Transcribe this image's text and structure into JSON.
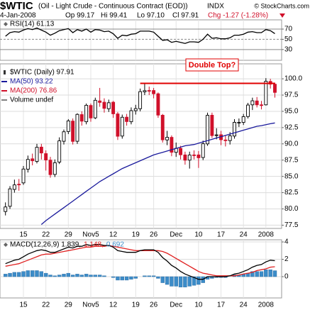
{
  "header": {
    "symbol": "$WTIC",
    "description": "(Oil - Light Crude - Continuous Contract (EOD))",
    "exchange": "INDX",
    "source": "© StockCharts.com",
    "date": "4-Jan-2008",
    "open": "Op 99.17",
    "high": "Hi 99.41",
    "low": "Lo 97.10",
    "close": "Cl 97.91",
    "change": "Chg -1.27 (-1.28%)"
  },
  "chart_data": [
    {
      "type": "line",
      "ylim": [
        9,
        88
      ],
      "yticks": [
        70,
        50,
        30
      ],
      "series": [
        {
          "name": "RSI(14) 61.13",
          "color": "#000000",
          "values": [
            56,
            63,
            65,
            64,
            68,
            71,
            69,
            72,
            68,
            64,
            58,
            62,
            67,
            69,
            71,
            63,
            69,
            66,
            70,
            64,
            69,
            68,
            65,
            66,
            61,
            52,
            58,
            57,
            60,
            61,
            66,
            66,
            66,
            64,
            56,
            48,
            49,
            44,
            46,
            44,
            42,
            45,
            45,
            44,
            50,
            60,
            52,
            53,
            51,
            51,
            53,
            58,
            58,
            60,
            64,
            65,
            63,
            63,
            69,
            67,
            61.13
          ]
        }
      ]
    },
    {
      "type": "candlestick",
      "ylim": [
        77,
        102.3
      ],
      "yticks": [
        {
          "value": 100,
          "label": "100.0"
        },
        97.5,
        {
          "value": 95,
          "label": "95.0"
        },
        92.5,
        {
          "value": 90,
          "label": "90.0"
        },
        87.5,
        {
          "value": 85,
          "label": "85.0"
        },
        82.5,
        {
          "value": 80,
          "label": "80.0"
        },
        77.5
      ],
      "categories": [
        null,
        null,
        null,
        null,
        "15",
        null,
        null,
        null,
        null,
        "22",
        null,
        null,
        null,
        null,
        "29",
        null,
        null,
        null,
        null,
        "Nov5",
        null,
        null,
        null,
        null,
        "12",
        null,
        null,
        null,
        null,
        "19",
        null,
        null,
        null,
        "26",
        null,
        null,
        null,
        null,
        "Dec",
        null,
        null,
        null,
        null,
        "10",
        null,
        null,
        null,
        null,
        "17",
        null,
        null,
        null,
        null,
        "24",
        null,
        null,
        null,
        null,
        "2008",
        null,
        null
      ],
      "up_color": "#000000",
      "down_color": "#d0102a",
      "candles": {
        "name": "$WTIC (Daily) 97.91",
        "open": [
          79.6,
          80.4,
          83.0,
          83.8,
          84.0,
          86.1,
          87.7,
          87.3,
          89.5,
          88.5,
          87.5,
          85.3,
          87.2,
          90.4,
          91.9,
          93.5,
          90.4,
          94.5,
          93.4,
          95.9,
          94.0,
          96.6,
          96.4,
          95.4,
          96.4,
          94.6,
          91.2,
          94.1,
          93.4,
          95.1,
          95.4,
          98.0,
          98.2,
          98.2,
          97.7,
          94.4,
          90.6,
          91.0,
          88.7,
          89.3,
          88.3,
          87.5,
          88.3,
          88.3,
          87.9,
          90.0,
          94.4,
          91.3,
          91.4,
          90.6,
          90.5,
          91.2,
          93.3,
          93.3,
          94.2,
          96.0,
          96.6,
          96.0,
          96.0,
          99.6,
          99.17
        ],
        "high": [
          81.0,
          83.5,
          84.5,
          84.6,
          86.6,
          88.2,
          88.5,
          90.0,
          90.0,
          89.0,
          88.0,
          87.6,
          91.0,
          92.2,
          93.8,
          93.9,
          94.7,
          95.0,
          96.2,
          96.2,
          97.1,
          98.6,
          97.0,
          96.8,
          96.6,
          94.9,
          94.5,
          94.6,
          95.6,
          96.0,
          98.5,
          99.3,
          98.8,
          98.6,
          97.9,
          94.6,
          92.0,
          91.3,
          90.2,
          89.7,
          88.8,
          88.8,
          89.0,
          88.9,
          90.5,
          94.8,
          94.8,
          92.4,
          92.0,
          91.3,
          91.8,
          93.8,
          93.9,
          94.6,
          96.3,
          97.1,
          97.2,
          96.6,
          100.1,
          100.0,
          99.41
        ],
        "low": [
          79.0,
          80.0,
          82.5,
          82.8,
          83.7,
          85.6,
          86.7,
          87.0,
          87.6,
          85.9,
          84.8,
          84.9,
          86.9,
          89.9,
          91.5,
          89.9,
          90.0,
          92.8,
          93.0,
          93.4,
          93.8,
          95.7,
          94.8,
          94.9,
          94.0,
          90.6,
          90.8,
          92.8,
          93.0,
          94.5,
          95.0,
          97.5,
          97.5,
          97.0,
          94.0,
          90.2,
          89.8,
          88.1,
          88.0,
          87.6,
          86.8,
          86.2,
          87.6,
          86.3,
          87.5,
          89.7,
          90.9,
          90.7,
          89.8,
          89.6,
          89.9,
          90.8,
          92.6,
          92.9,
          93.9,
          95.2,
          95.6,
          95.3,
          95.9,
          98.5,
          97.1
        ],
        "close": [
          80.3,
          83.08,
          83.69,
          83.69,
          86.13,
          87.61,
          87.4,
          89.47,
          88.6,
          87.52,
          85.27,
          87.1,
          90.46,
          91.86,
          93.53,
          90.38,
          94.53,
          93.49,
          95.93,
          93.98,
          96.7,
          96.37,
          95.46,
          96.32,
          94.62,
          91.17,
          94.09,
          93.43,
          95.1,
          95.42,
          98.03,
          98.18,
          98.18,
          97.7,
          94.42,
          90.62,
          91.01,
          88.71,
          89.31,
          88.32,
          87.49,
          88.28,
          88.28,
          87.86,
          90.02,
          94.39,
          91.27,
          91.38,
          90.63,
          90.49,
          91.24,
          93.31,
          93.31,
          94.18,
          95.97,
          96.62,
          96.0,
          95.98,
          99.62,
          99.18,
          97.91
        ]
      },
      "series": [
        {
          "name": "MA(50) 93.22",
          "color": "#1a1a9c",
          "values": [
            null,
            null,
            null,
            null,
            null,
            null,
            null,
            null,
            77.6,
            78.2,
            78.7,
            79.2,
            79.7,
            80.2,
            80.7,
            81.2,
            81.7,
            82.2,
            82.7,
            83.2,
            83.7,
            84.2,
            84.6,
            85.0,
            85.4,
            85.8,
            86.2,
            86.5,
            86.8,
            87.1,
            87.4,
            87.7,
            88.0,
            88.3,
            88.5,
            88.7,
            88.9,
            89.1,
            89.3,
            89.5,
            89.7,
            89.8,
            89.9,
            90.1,
            90.3,
            90.5,
            90.7,
            90.9,
            91.1,
            91.3,
            91.5,
            91.7,
            91.9,
            92.1,
            92.3,
            92.5,
            92.7,
            92.8,
            92.95,
            93.1,
            93.22
          ]
        },
        {
          "name": "MA(200) 76.86",
          "color": "#d0102a"
        },
        {
          "name": "Volume undef",
          "color": "#808080"
        }
      ],
      "annotation": {
        "text": "Double Top?",
        "color": "#e00000",
        "level": 99.3,
        "start": 30,
        "end": 60
      }
    },
    {
      "type": "macd",
      "ylim": [
        -2.45,
        4.25
      ],
      "yticks": [
        4,
        2,
        0
      ],
      "series": [
        {
          "name": "MACD(12,26,9) 1.839,",
          "color": "#000000",
          "values": [
            1.5,
            1.7,
            1.9,
            2.0,
            2.3,
            2.6,
            2.8,
            3.0,
            3.1,
            3.0,
            2.8,
            2.8,
            3.0,
            3.2,
            3.4,
            3.3,
            3.5,
            3.5,
            3.7,
            3.6,
            3.7,
            3.7,
            3.6,
            3.6,
            3.4,
            3.0,
            2.9,
            2.8,
            2.8,
            2.8,
            3.0,
            3.1,
            3.1,
            3.1,
            2.8,
            2.2,
            1.8,
            1.3,
            1.0,
            0.6,
            0.3,
            0.1,
            -0.1,
            -0.3,
            -0.3,
            0.0,
            0.0,
            0.0,
            0.0,
            0.0,
            0.1,
            0.3,
            0.4,
            0.6,
            0.8,
            1.1,
            1.3,
            1.4,
            1.7,
            1.9,
            1.839
          ]
        },
        {
          "name": "1.148,",
          "color": "#e02020",
          "values": [
            1.2,
            1.3,
            1.4,
            1.5,
            1.7,
            1.9,
            2.1,
            2.3,
            2.5,
            2.6,
            2.6,
            2.7,
            2.8,
            2.9,
            3.0,
            3.1,
            3.2,
            3.3,
            3.4,
            3.4,
            3.5,
            3.5,
            3.5,
            3.6,
            3.5,
            3.4,
            3.3,
            3.2,
            3.1,
            3.0,
            3.0,
            3.0,
            3.0,
            3.0,
            3.0,
            2.9,
            2.7,
            2.4,
            2.1,
            1.8,
            1.5,
            1.2,
            0.9,
            0.6,
            0.4,
            0.3,
            0.2,
            0.1,
            0.1,
            0.1,
            0.1,
            0.1,
            0.2,
            0.3,
            0.4,
            0.5,
            0.7,
            0.8,
            0.9,
            1.1,
            1.148
          ]
        },
        {
          "name": "0.692",
          "color": "#3c8cc8",
          "values": [
            0.3,
            0.4,
            0.5,
            0.5,
            0.6,
            0.7,
            0.7,
            0.7,
            0.6,
            0.4,
            0.2,
            0.1,
            0.2,
            0.3,
            0.4,
            0.2,
            0.3,
            0.2,
            0.3,
            0.2,
            0.2,
            0.2,
            0.1,
            0.0,
            -0.1,
            -0.4,
            -0.4,
            -0.4,
            -0.3,
            -0.2,
            0.0,
            0.1,
            0.1,
            0.1,
            -0.2,
            -0.7,
            -0.9,
            -1.1,
            -1.1,
            -1.2,
            -1.2,
            -1.1,
            -1.0,
            -0.9,
            -0.7,
            -0.3,
            -0.2,
            -0.1,
            -0.1,
            -0.1,
            0.0,
            0.2,
            0.2,
            0.3,
            0.4,
            0.6,
            0.6,
            0.6,
            0.8,
            0.8,
            0.692
          ]
        }
      ]
    }
  ]
}
